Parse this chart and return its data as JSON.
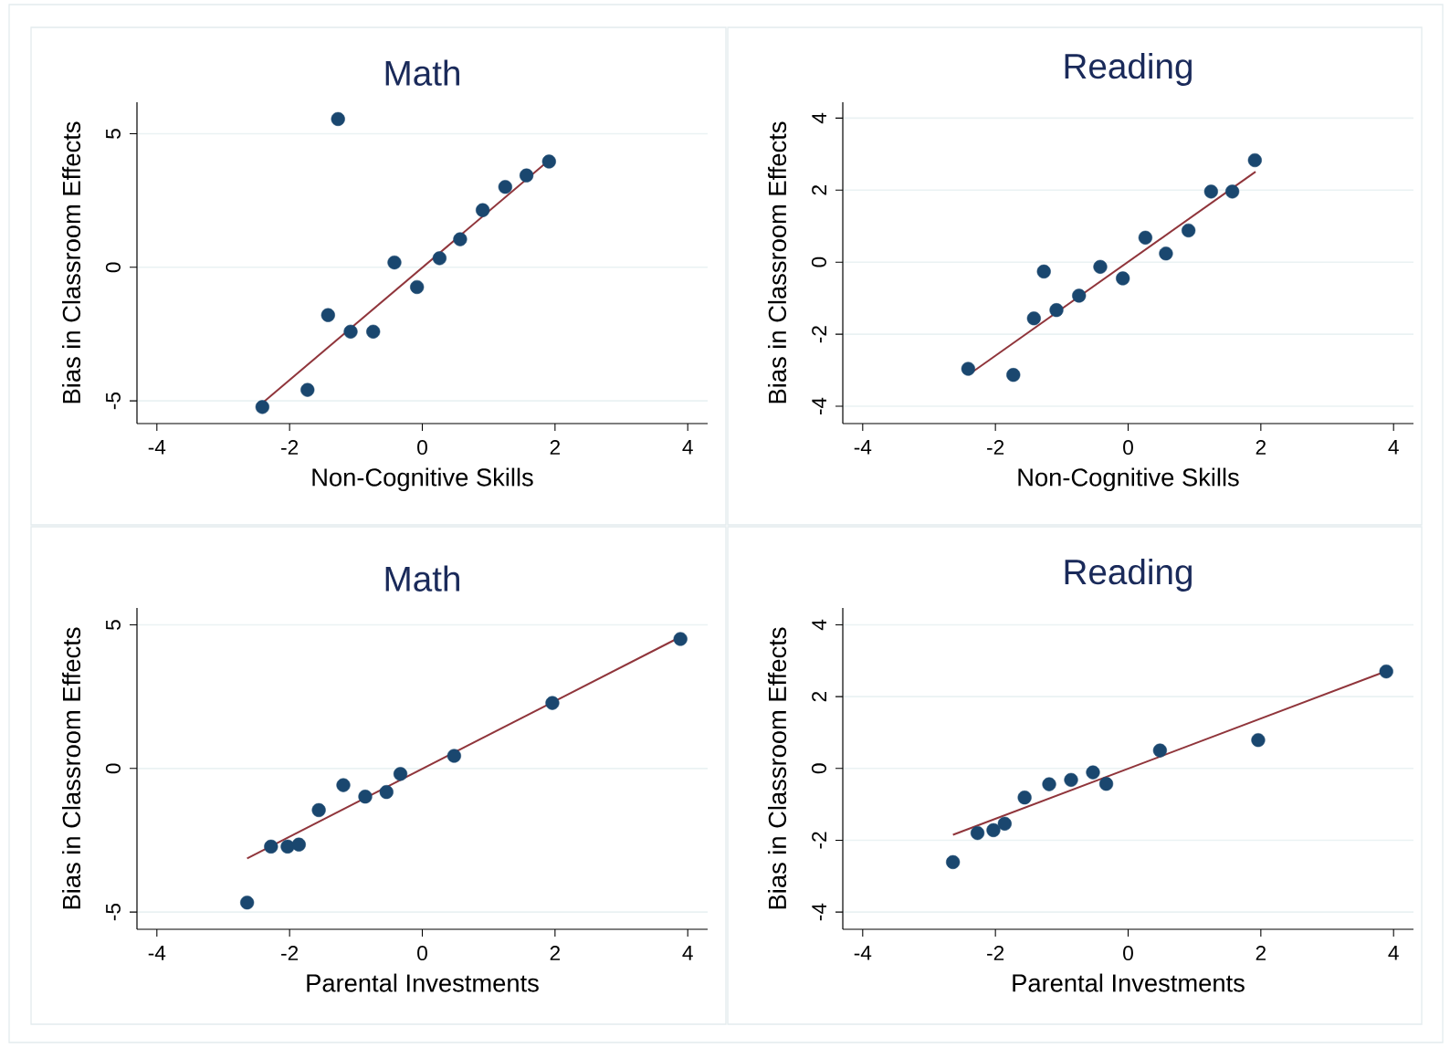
{
  "chart_data": [
    {
      "type": "scatter",
      "title": "Math",
      "xlabel": "Non-Cognitive Skills",
      "ylabel": "Bias in Classroom Effects",
      "xlim": [
        -4.3,
        4.3
      ],
      "ylim": [
        -5.85,
        6.18
      ],
      "xticks": [
        -4,
        -2,
        0,
        2,
        4
      ],
      "yticks": [
        -5,
        0,
        5
      ],
      "grid": "y",
      "series": [
        {
          "marker": "circle",
          "color": "#1a476f",
          "x": [
            -2.41,
            -1.73,
            -1.42,
            -1.27,
            -1.08,
            -0.74,
            -0.42,
            -0.08,
            0.26,
            0.57,
            0.91,
            1.25,
            1.57,
            1.91
          ],
          "values": [
            -5.23,
            -4.59,
            -1.79,
            5.55,
            -2.41,
            -2.41,
            0.18,
            -0.74,
            0.34,
            1.05,
            2.14,
            3.01,
            3.44,
            3.96
          ]
        },
        {
          "type": "line",
          "color": "#90353b",
          "x": [
            -2.41,
            1.91
          ],
          "values": [
            -5.08,
            4.01
          ]
        }
      ]
    },
    {
      "type": "scatter",
      "title": "Reading",
      "xlabel": "Non-Cognitive Skills",
      "ylabel": "Bias in Classroom Effects",
      "xlim": [
        -4.3,
        4.3
      ],
      "ylim": [
        -4.48,
        4.44
      ],
      "xticks": [
        -4,
        -2,
        0,
        2,
        4
      ],
      "yticks": [
        -4,
        -2,
        0,
        2,
        4
      ],
      "grid": "y",
      "series": [
        {
          "marker": "circle",
          "color": "#1a476f",
          "x": [
            -2.41,
            -1.73,
            -1.42,
            -1.27,
            -1.08,
            -0.74,
            -0.42,
            -0.08,
            0.26,
            0.57,
            0.91,
            1.25,
            1.57,
            1.91
          ],
          "values": [
            -2.96,
            -3.13,
            -1.56,
            -0.26,
            -1.33,
            -0.93,
            -0.13,
            -0.45,
            0.68,
            0.24,
            0.88,
            1.96,
            1.96,
            2.83
          ]
        },
        {
          "type": "line",
          "color": "#90353b",
          "x": [
            -2.41,
            1.92
          ],
          "values": [
            -3.13,
            2.51
          ]
        }
      ]
    },
    {
      "type": "scatter",
      "title": "Math",
      "xlabel": "Parental Investments",
      "ylabel": "Bias in Classroom Effects",
      "xlim": [
        -4.3,
        4.3
      ],
      "ylim": [
        -5.6,
        5.59
      ],
      "xticks": [
        -4,
        -2,
        0,
        2,
        4
      ],
      "yticks": [
        -5,
        0,
        5
      ],
      "grid": "y",
      "series": [
        {
          "marker": "circle",
          "color": "#1a476f",
          "x": [
            -2.64,
            -2.28,
            -2.03,
            -1.86,
            -1.56,
            -1.19,
            -0.86,
            -0.54,
            -0.33,
            0.48,
            1.96,
            3.89
          ],
          "values": [
            -4.67,
            -2.72,
            -2.72,
            -2.65,
            -1.45,
            -0.58,
            -0.98,
            -0.82,
            -0.19,
            0.44,
            2.28,
            4.51
          ]
        },
        {
          "type": "line",
          "color": "#90353b",
          "x": [
            -2.64,
            3.89
          ],
          "values": [
            -3.13,
            4.58
          ]
        }
      ]
    },
    {
      "type": "scatter",
      "title": "Reading",
      "xlabel": "Parental Investments",
      "ylabel": "Bias in Classroom Effects",
      "xlim": [
        -4.3,
        4.3
      ],
      "ylim": [
        -4.48,
        4.47
      ],
      "xticks": [
        -4,
        -2,
        0,
        2,
        4
      ],
      "yticks": [
        -4,
        -2,
        0,
        2,
        4
      ],
      "grid": "y",
      "series": [
        {
          "marker": "circle",
          "color": "#1a476f",
          "x": [
            -2.64,
            -2.27,
            -2.03,
            -1.86,
            -1.56,
            -1.19,
            -0.86,
            -0.53,
            -0.33,
            0.48,
            1.96,
            3.89
          ],
          "values": [
            -2.61,
            -1.8,
            -1.72,
            -1.54,
            -0.81,
            -0.44,
            -0.32,
            -0.11,
            -0.43,
            0.5,
            0.79,
            2.7
          ]
        },
        {
          "type": "line",
          "color": "#90353b",
          "x": [
            -2.64,
            3.89
          ],
          "values": [
            -1.85,
            2.71
          ]
        }
      ]
    }
  ]
}
